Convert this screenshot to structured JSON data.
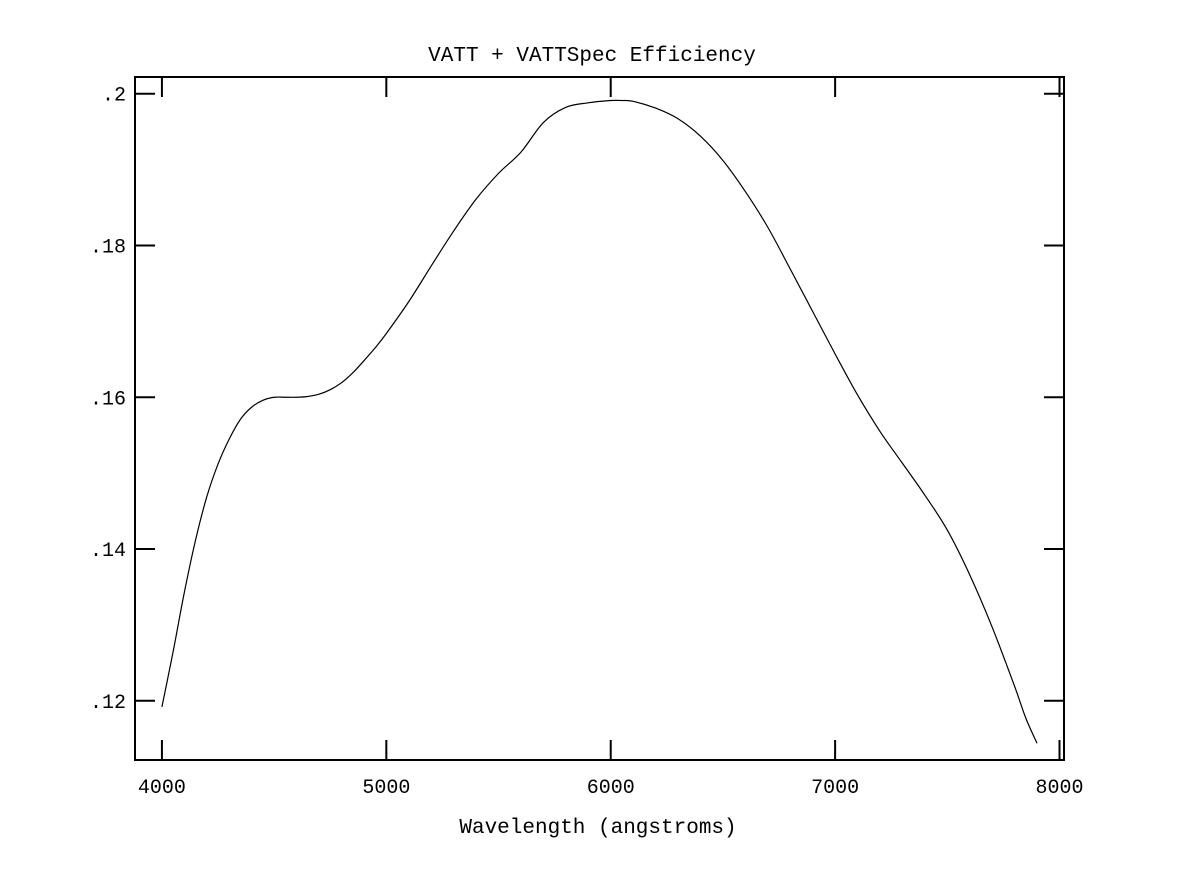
{
  "chart_data": {
    "type": "line",
    "title": "VATT + VATTSpec Efficiency",
    "xlabel": "Wavelength (angstroms)",
    "ylabel": "",
    "xlim": [
      3880,
      8020
    ],
    "ylim": [
      0.1122,
      0.2022
    ],
    "x_ticks": [
      {
        "value": 4000,
        "label": "4000"
      },
      {
        "value": 5000,
        "label": "5000"
      },
      {
        "value": 6000,
        "label": "6000"
      },
      {
        "value": 7000,
        "label": "7000"
      },
      {
        "value": 8000,
        "label": "8000"
      }
    ],
    "y_ticks": [
      {
        "value": 0.12,
        "label": ".12"
      },
      {
        "value": 0.14,
        "label": ".14"
      },
      {
        "value": 0.16,
        "label": ".16"
      },
      {
        "value": 0.18,
        "label": ".18"
      },
      {
        "value": 0.2,
        "label": ".2"
      }
    ],
    "grid": false,
    "line_color": "#000000",
    "series": [
      {
        "x": [
          4000,
          4050,
          4100,
          4150,
          4200,
          4250,
          4300,
          4350,
          4400,
          4450,
          4500,
          4550,
          4600,
          4650,
          4700,
          4750,
          4800,
          4850,
          4900,
          4950,
          5000,
          5100,
          5200,
          5300,
          5400,
          5500,
          5600,
          5700,
          5800,
          5900,
          6000,
          6050,
          6100,
          6200,
          6300,
          6400,
          6500,
          6600,
          6700,
          6800,
          6900,
          7000,
          7100,
          7200,
          7300,
          7400,
          7500,
          7600,
          7700,
          7800,
          7850,
          7900
        ],
        "y": [
          0.1192,
          0.1265,
          0.1343,
          0.1412,
          0.1469,
          0.1512,
          0.1545,
          0.1571,
          0.1587,
          0.1596,
          0.16,
          0.16,
          0.16,
          0.1601,
          0.1604,
          0.161,
          0.1619,
          0.1632,
          0.1648,
          0.1665,
          0.1684,
          0.1726,
          0.1773,
          0.1819,
          0.1861,
          0.1895,
          0.1923,
          0.1962,
          0.1982,
          0.1988,
          0.1991,
          0.1991,
          0.199,
          0.1981,
          0.1967,
          0.1944,
          0.1912,
          0.1871,
          0.1824,
          0.1769,
          0.1713,
          0.1657,
          0.1603,
          0.1555,
          0.1513,
          0.1471,
          0.1425,
          0.1366,
          0.1297,
          0.1219,
          0.1177,
          0.1144
        ]
      }
    ]
  }
}
